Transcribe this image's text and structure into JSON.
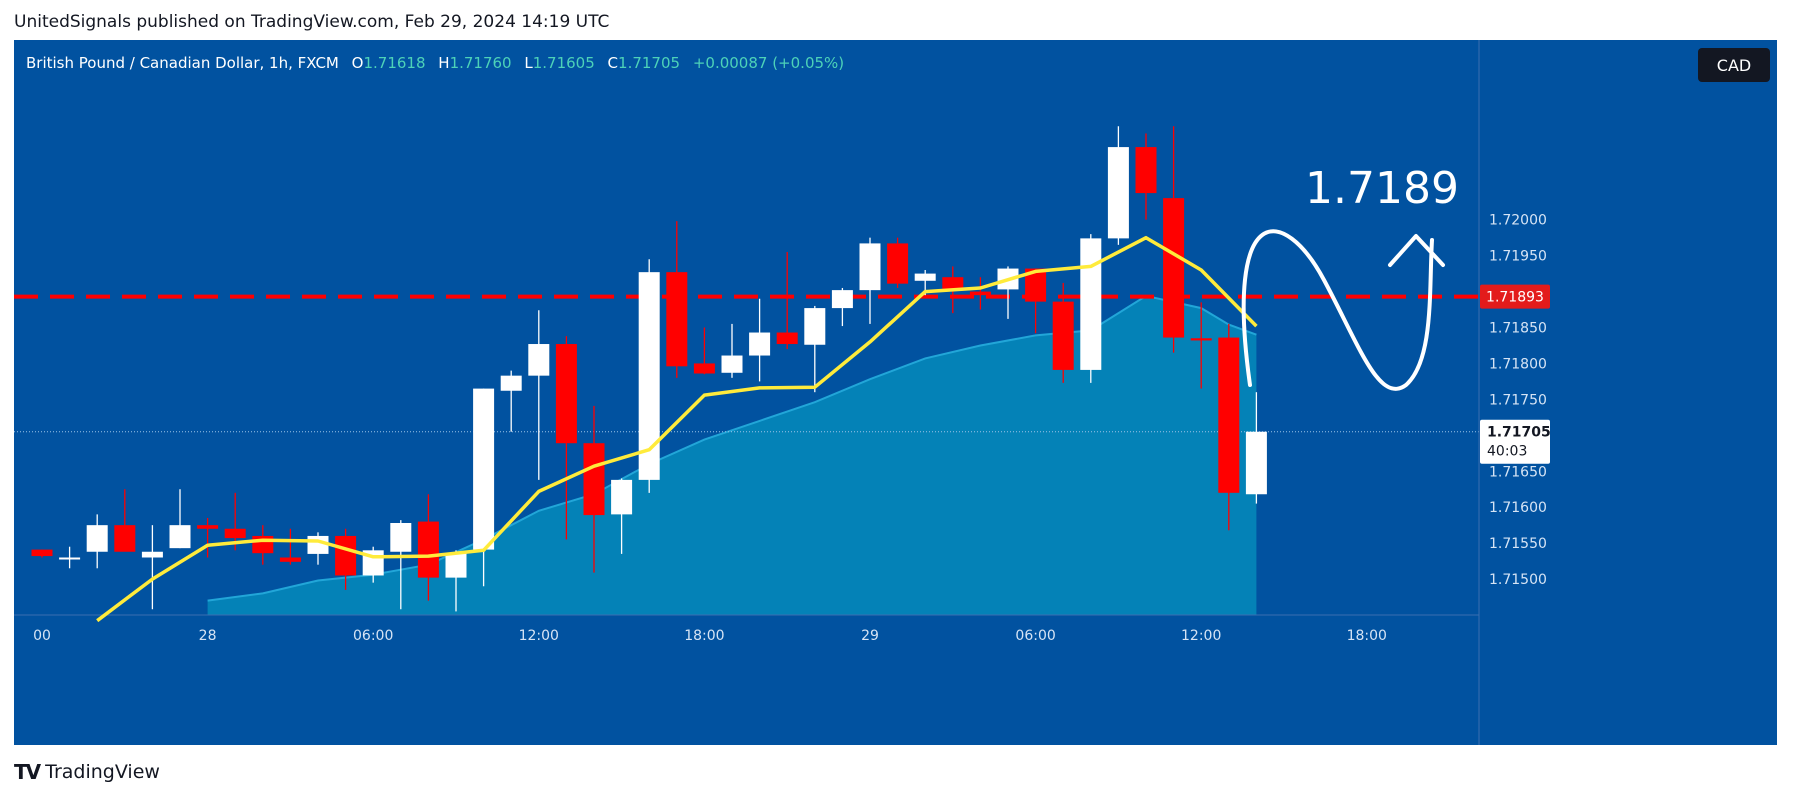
{
  "header": {
    "text": "UnitedSignals published on TradingView.com, Feb 29, 2024 14:19 UTC"
  },
  "legend": {
    "symbol": "British Pound / Canadian Dollar, 1h, FXCM",
    "open_label": "O",
    "open": "1.71618",
    "high_label": "H",
    "high": "1.71760",
    "low_label": "L",
    "low": "1.71605",
    "close_label": "C",
    "close": "1.71705",
    "change": "+0.00087 (+0.05%)"
  },
  "currency": "CAD",
  "footer": {
    "logo": "TV",
    "brand": "TradingView"
  },
  "colors": {
    "background": "#0152a0",
    "up_candle": "#ffffff",
    "down_candle": "#ff0000",
    "ma_line": "#ffeb3b",
    "area_fill": "#0487b9",
    "level_line": "#ff0000",
    "level_badge": "#e31b1b"
  },
  "chart_data": {
    "type": "candlestick",
    "symbol": "British Pound / Canadian Dollar",
    "interval": "1h",
    "ylim": [
      1.7145,
      1.7225
    ],
    "y_ticks": [
      1.715,
      1.7155,
      1.716,
      1.7165,
      1.717,
      1.7175,
      1.718,
      1.7185,
      1.719,
      1.7195,
      1.72
    ],
    "y_tick_labels": [
      "1.71500",
      "1.71550",
      "1.71600",
      "1.71650",
      "1.71700",
      "1.71750",
      "1.71800",
      "1.71850",
      "1.71900",
      "1.71950",
      "1.72000"
    ],
    "x_tick_labels": [
      {
        "label": "00",
        "bar": 0
      },
      {
        "label": "28",
        "bar": 6
      },
      {
        "label": "06:00",
        "bar": 12
      },
      {
        "label": "12:00",
        "bar": 18
      },
      {
        "label": "18:00",
        "bar": 24
      },
      {
        "label": "29",
        "bar": 30
      },
      {
        "label": "06:00",
        "bar": 36
      },
      {
        "label": "12:00",
        "bar": 42
      },
      {
        "label": "18:00",
        "bar": 48
      }
    ],
    "candles": [
      {
        "o": 1.71541,
        "h": 1.71541,
        "l": 1.7153,
        "c": 1.71532
      },
      {
        "o": 1.7153,
        "h": 1.71545,
        "l": 1.71515,
        "c": 1.7153
      },
      {
        "o": 1.71538,
        "h": 1.7159,
        "l": 1.71515,
        "c": 1.71575
      },
      {
        "o": 1.71575,
        "h": 1.71625,
        "l": 1.7154,
        "c": 1.71538
      },
      {
        "o": 1.7153,
        "h": 1.71575,
        "l": 1.71458,
        "c": 1.71538
      },
      {
        "o": 1.71543,
        "h": 1.71625,
        "l": 1.71543,
        "c": 1.71575
      },
      {
        "o": 1.71575,
        "h": 1.71585,
        "l": 1.7153,
        "c": 1.7157
      },
      {
        "o": 1.7157,
        "h": 1.7162,
        "l": 1.7154,
        "c": 1.71557
      },
      {
        "o": 1.7156,
        "h": 1.71575,
        "l": 1.7152,
        "c": 1.71536
      },
      {
        "o": 1.7153,
        "h": 1.7157,
        "l": 1.7152,
        "c": 1.71524
      },
      {
        "o": 1.71535,
        "h": 1.71565,
        "l": 1.7152,
        "c": 1.7156
      },
      {
        "o": 1.7156,
        "h": 1.7157,
        "l": 1.71485,
        "c": 1.71505
      },
      {
        "o": 1.71505,
        "h": 1.71545,
        "l": 1.71495,
        "c": 1.7154
      },
      {
        "o": 1.71538,
        "h": 1.71582,
        "l": 1.71458,
        "c": 1.71578
      },
      {
        "o": 1.7158,
        "h": 1.71618,
        "l": 1.7147,
        "c": 1.71502
      },
      {
        "o": 1.71502,
        "h": 1.7154,
        "l": 1.71455,
        "c": 1.71536
      },
      {
        "o": 1.71541,
        "h": 1.71765,
        "l": 1.7149,
        "c": 1.71765
      },
      {
        "o": 1.71762,
        "h": 1.7179,
        "l": 1.71705,
        "c": 1.71783
      },
      {
        "o": 1.71783,
        "h": 1.71874,
        "l": 1.71638,
        "c": 1.71827
      },
      {
        "o": 1.71827,
        "h": 1.71838,
        "l": 1.71555,
        "c": 1.71689
      },
      {
        "o": 1.71689,
        "h": 1.71741,
        "l": 1.71509,
        "c": 1.71589
      },
      {
        "o": 1.7159,
        "h": 1.7164,
        "l": 1.71535,
        "c": 1.71638
      },
      {
        "o": 1.71638,
        "h": 1.71945,
        "l": 1.7162,
        "c": 1.71927
      },
      {
        "o": 1.71927,
        "h": 1.71998,
        "l": 1.7178,
        "c": 1.71796
      },
      {
        "o": 1.718,
        "h": 1.7185,
        "l": 1.71785,
        "c": 1.71786
      },
      {
        "o": 1.71787,
        "h": 1.71855,
        "l": 1.7178,
        "c": 1.71811
      },
      {
        "o": 1.71811,
        "h": 1.7189,
        "l": 1.71775,
        "c": 1.71843
      },
      {
        "o": 1.71843,
        "h": 1.71955,
        "l": 1.7182,
        "c": 1.71827
      },
      {
        "o": 1.71826,
        "h": 1.7188,
        "l": 1.7176,
        "c": 1.71877
      },
      {
        "o": 1.71877,
        "h": 1.71905,
        "l": 1.71852,
        "c": 1.71902
      },
      {
        "o": 1.71902,
        "h": 1.71975,
        "l": 1.71855,
        "c": 1.71967
      },
      {
        "o": 1.71967,
        "h": 1.71975,
        "l": 1.71905,
        "c": 1.71911
      },
      {
        "o": 1.71915,
        "h": 1.7193,
        "l": 1.71895,
        "c": 1.71925
      },
      {
        "o": 1.7192,
        "h": 1.71935,
        "l": 1.7187,
        "c": 1.71901
      },
      {
        "o": 1.719,
        "h": 1.7192,
        "l": 1.71875,
        "c": 1.71895
      },
      {
        "o": 1.71903,
        "h": 1.71935,
        "l": 1.71862,
        "c": 1.71932
      },
      {
        "o": 1.71932,
        "h": 1.71932,
        "l": 1.71842,
        "c": 1.71886
      },
      {
        "o": 1.71886,
        "h": 1.71912,
        "l": 1.71773,
        "c": 1.71791
      },
      {
        "o": 1.71791,
        "h": 1.7198,
        "l": 1.71773,
        "c": 1.71974
      },
      {
        "o": 1.71974,
        "h": 1.7213,
        "l": 1.71965,
        "c": 1.72101
      },
      {
        "o": 1.72101,
        "h": 1.7212,
        "l": 1.72,
        "c": 1.72037
      },
      {
        "o": 1.7203,
        "h": 1.7213,
        "l": 1.71815,
        "c": 1.71836
      },
      {
        "o": 1.71835,
        "h": 1.71885,
        "l": 1.71765,
        "c": 1.71832
      },
      {
        "o": 1.71836,
        "h": 1.71855,
        "l": 1.71568,
        "c": 1.7162
      },
      {
        "o": 1.71618,
        "h": 1.7176,
        "l": 1.71605,
        "c": 1.71705
      }
    ],
    "ma_line": {
      "bars": [
        2,
        4,
        6,
        8,
        10,
        12,
        14,
        16,
        18,
        20,
        22,
        24,
        26,
        28,
        30,
        32,
        34,
        36,
        38,
        40,
        42,
        44
      ],
      "values": [
        1.71442,
        1.715,
        1.71547,
        1.71554,
        1.71553,
        1.71531,
        1.71532,
        1.7154,
        1.71622,
        1.71657,
        1.7168,
        1.71756,
        1.71766,
        1.71767,
        1.7183,
        1.719,
        1.71905,
        1.71928,
        1.71935,
        1.71975,
        1.7193,
        1.71852
      ]
    },
    "area_series": {
      "bars": [
        6,
        8,
        10,
        12,
        14,
        16,
        18,
        20,
        22,
        24,
        26,
        28,
        30,
        32,
        34,
        36,
        38,
        40,
        42,
        43,
        44
      ],
      "values": [
        1.7147,
        1.7148,
        1.71498,
        1.71506,
        1.7152,
        1.71555,
        1.71595,
        1.71618,
        1.7166,
        1.71694,
        1.7172,
        1.71746,
        1.71778,
        1.71807,
        1.71825,
        1.71839,
        1.71846,
        1.71894,
        1.71877,
        1.71854,
        1.7184
      ]
    },
    "horizontal_level": {
      "value": 1.71893,
      "label": "1.71893",
      "style": "dashed"
    },
    "annotation": {
      "text": "1.7189"
    },
    "last_price": {
      "value": 1.71705,
      "label": "1.71705",
      "countdown": "40:03"
    }
  }
}
